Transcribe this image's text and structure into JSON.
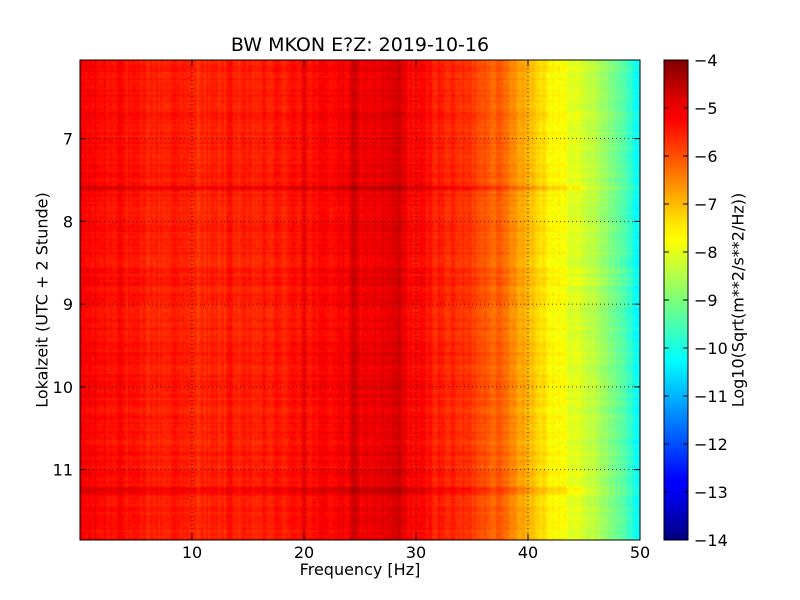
{
  "chart_data": {
    "type": "heatmap",
    "title": "BW MKON E?Z: 2019-10-16",
    "xlabel": "Frequency [Hz]",
    "ylabel": "Lokalzeit (UTC + 2 Stunde)",
    "xlim": [
      0,
      50
    ],
    "ylim": [
      11.85,
      6.05
    ],
    "y_inverted": true,
    "x_ticks": [
      10,
      20,
      30,
      40,
      50
    ],
    "x_tick_labels": [
      "10",
      "20",
      "30",
      "40",
      "50"
    ],
    "y_ticks": [
      7,
      8,
      9,
      10,
      11
    ],
    "y_tick_labels": [
      "7",
      "8",
      "9",
      "10",
      "11"
    ],
    "grid": true,
    "colormap": "jet",
    "colorbar": {
      "label": "Log10(Sqrt(m**2/s**2/Hz))",
      "range": [
        -14,
        -4
      ],
      "ticks": [
        -4,
        -5,
        -6,
        -7,
        -8,
        -9,
        -10,
        -11,
        -12,
        -13,
        -14
      ],
      "tick_labels": [
        "−4",
        "−5",
        "−6",
        "−7",
        "−8",
        "−9",
        "−10",
        "−11",
        "−12",
        "−13",
        "−14"
      ]
    },
    "spectral_profile": {
      "frequency_hz": [
        0,
        5,
        10,
        15,
        20,
        25,
        28,
        30,
        35,
        38,
        40,
        42,
        44,
        46,
        48,
        50
      ],
      "log10_amplitude": [
        -5.2,
        -5.5,
        -5.6,
        -5.6,
        -5.4,
        -5.1,
        -5.0,
        -5.3,
        -5.8,
        -6.3,
        -7.0,
        -7.6,
        -8.0,
        -8.4,
        -9.2,
        -10.2
      ]
    },
    "line_peaks_hz": [
      3.5,
      8.5,
      13.5,
      20,
      24.5,
      28.5
    ],
    "strong_time_events_h": [
      7.6,
      11.25
    ]
  }
}
